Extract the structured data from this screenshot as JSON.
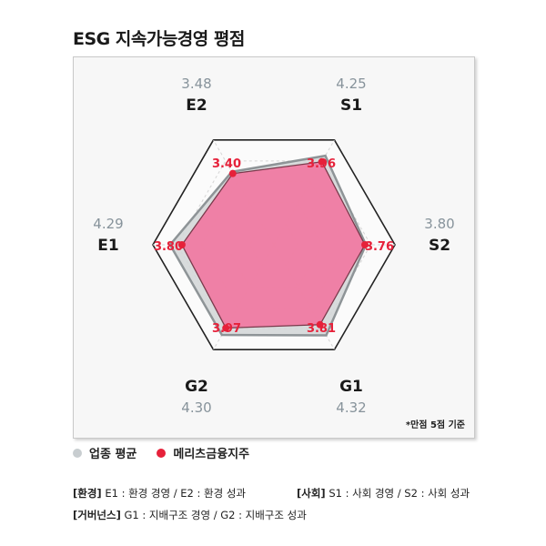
{
  "title": "ESG 지속가능경영 평점",
  "note": "*만점 5점 기준",
  "colors": {
    "industry_fill": "#d4d7d8",
    "industry_stroke": "#8e9497",
    "company_fill": "#f07ba2",
    "company_stroke": "#7a3a4c",
    "company_point": "#e6213a",
    "industry_text": "#87939b",
    "axis_text": "#1a1a1a",
    "hexagon": "#222222",
    "grid": "#d5d5d5"
  },
  "legend": {
    "industry": "업종 평균",
    "company": "메리츠금융지주"
  },
  "footnotes": {
    "env_tag": "[환경]",
    "env_text": "E1 : 환경 경영 / E2 : 환경 성과",
    "soc_tag": "[사회]",
    "soc_text": "S1 : 사회 경영 / S2 : 사회 성과",
    "gov_tag": "[거버넌스]",
    "gov_text": "G1 : 지배구조 경영 / G2 : 지배구조 성과"
  },
  "chart_data": {
    "type": "radar",
    "title": "ESG 지속가능경영 평점",
    "max": 5,
    "categories": [
      "S1",
      "S2",
      "G1",
      "G2",
      "E1",
      "E2"
    ],
    "series": [
      {
        "name": "업종 평균",
        "values": [
          4.25,
          3.8,
          4.32,
          4.3,
          4.29,
          3.48
        ]
      },
      {
        "name": "메리츠금융지주",
        "values": [
          3.96,
          3.76,
          3.81,
          3.97,
          3.8,
          3.4
        ]
      }
    ],
    "industry_labels": [
      "4.25",
      "3.80",
      "4.32",
      "4.30",
      "4.29",
      "3.48"
    ],
    "company_labels": [
      "3.96",
      "3.76",
      "3.81",
      "3.97",
      "3.80",
      "3.40"
    ]
  }
}
